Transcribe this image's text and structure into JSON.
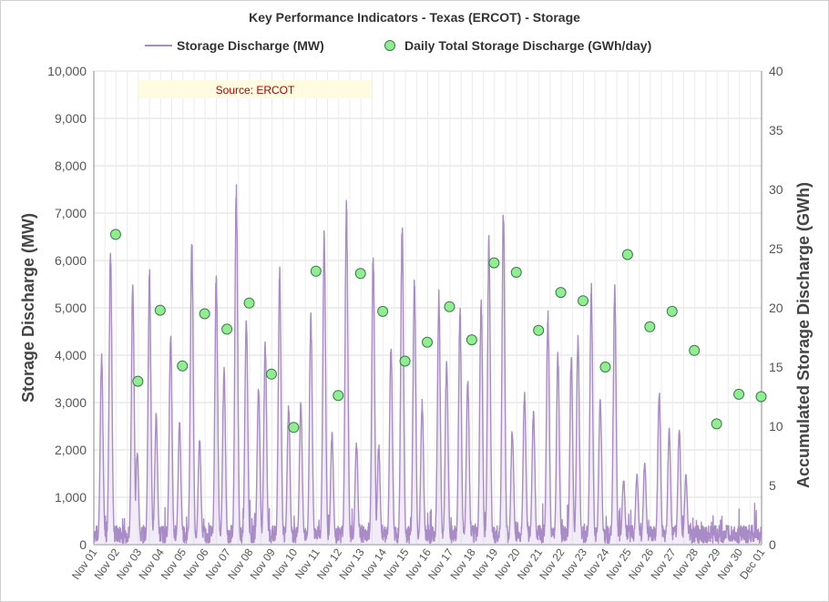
{
  "chart_data": {
    "type": "line",
    "title": "Key Performance Indicators - Texas (ERCOT) - Storage",
    "annotation": "Source: ERCOT",
    "ylabel_left": "Storage Discharge (MW)",
    "ylabel_right": "Accumulated Storage Discharge (GWh)",
    "ylim_left": [
      0,
      10000
    ],
    "ylim_right": [
      0,
      40
    ],
    "yticks_left": [
      "0",
      "1,000",
      "2,000",
      "3,000",
      "4,000",
      "5,000",
      "6,000",
      "7,000",
      "8,000",
      "9,000",
      "10,000"
    ],
    "yticks_right": [
      "0",
      "5",
      "10",
      "15",
      "20",
      "25",
      "30",
      "35",
      "40"
    ],
    "grid": true,
    "legend_position": "top",
    "x_tick_labels": [
      "Nov 01",
      "Nov 02",
      "Nov 03",
      "Nov 04",
      "Nov 05",
      "Nov 06",
      "Nov 07",
      "Nov 08",
      "Nov 09",
      "Nov 10",
      "Nov 11",
      "Nov 12",
      "Nov 13",
      "Nov 14",
      "Nov 15",
      "Nov 16",
      "Nov 17",
      "Nov 18",
      "Nov 19",
      "Nov 20",
      "Nov 21",
      "Nov 22",
      "Nov 23",
      "Nov 24",
      "Nov 25",
      "Nov 26",
      "Nov 27",
      "Nov 28",
      "Nov 29",
      "Nov 30",
      "Dec 01"
    ],
    "series": [
      {
        "name": "Storage Discharge (MW)",
        "type": "line",
        "axis": "left",
        "color": "#a88bc7",
        "daily_peaks": [
          [
            0.35,
            4050,
            0.75,
            6400
          ],
          [
            0.75,
            5650,
            0.95,
            2000
          ],
          [
            0.5,
            5900,
            0.8,
            2800
          ],
          [
            0.45,
            4600,
            0.85,
            2650
          ],
          [
            0.4,
            6700,
            0.75,
            2300
          ],
          [
            0.5,
            5850,
            0.85,
            3800
          ],
          [
            0.4,
            7800,
            0.85,
            5000
          ],
          [
            0.4,
            3400,
            0.7,
            4400
          ],
          [
            0.35,
            5900,
            0.75,
            3000
          ],
          [
            0.3,
            3100,
            0.75,
            4900
          ],
          [
            0.35,
            6750,
            0.7,
            2400
          ],
          [
            0.35,
            7400,
            0.8,
            2200
          ],
          [
            0.55,
            6250,
            0.8,
            2150
          ],
          [
            0.35,
            4350,
            0.85,
            6900
          ],
          [
            0.4,
            5650,
            0.75,
            3100
          ],
          [
            0.5,
            5450,
            0.85,
            4000
          ],
          [
            0.45,
            5050,
            0.8,
            3600
          ],
          [
            0.4,
            5350,
            0.75,
            6600
          ],
          [
            0.4,
            7200,
            0.8,
            2500
          ],
          [
            0.35,
            3300,
            0.75,
            2900
          ],
          [
            0.4,
            5000,
            0.85,
            4100
          ],
          [
            0.45,
            4050,
            0.75,
            4500
          ],
          [
            0.35,
            5600,
            0.75,
            3250
          ],
          [
            0.4,
            5550,
            0.8,
            1450
          ],
          [
            0.4,
            1500,
            0.75,
            1800
          ],
          [
            0.4,
            3350,
            0.85,
            2550
          ],
          [
            0.3,
            2500,
            0.6,
            1500
          ]
        ]
      },
      {
        "name": "Daily Total Storage Discharge (GWh/day)",
        "type": "scatter",
        "axis": "right",
        "color": "#90ee90",
        "x": [
          "Nov 02",
          "Nov 03",
          "Nov 04",
          "Nov 05",
          "Nov 06",
          "Nov 07",
          "Nov 08",
          "Nov 09",
          "Nov 10",
          "Nov 11",
          "Nov 12",
          "Nov 13",
          "Nov 14",
          "Nov 15",
          "Nov 16",
          "Nov 17",
          "Nov 18",
          "Nov 19",
          "Nov 20",
          "Nov 21",
          "Nov 22",
          "Nov 23",
          "Nov 24",
          "Nov 25",
          "Nov 26",
          "Nov 27",
          "Nov 28",
          "Nov 29",
          "Nov 30",
          "Dec 01"
        ],
        "values": [
          26.2,
          13.8,
          19.8,
          15.1,
          19.5,
          18.2,
          20.4,
          14.4,
          9.9,
          23.1,
          12.6,
          22.9,
          19.7,
          15.5,
          17.1,
          20.1,
          17.3,
          23.8,
          23.0,
          18.1,
          21.3,
          20.6,
          15.0,
          24.5,
          18.4,
          19.7,
          16.4,
          10.2,
          12.7,
          12.5
        ]
      }
    ]
  }
}
